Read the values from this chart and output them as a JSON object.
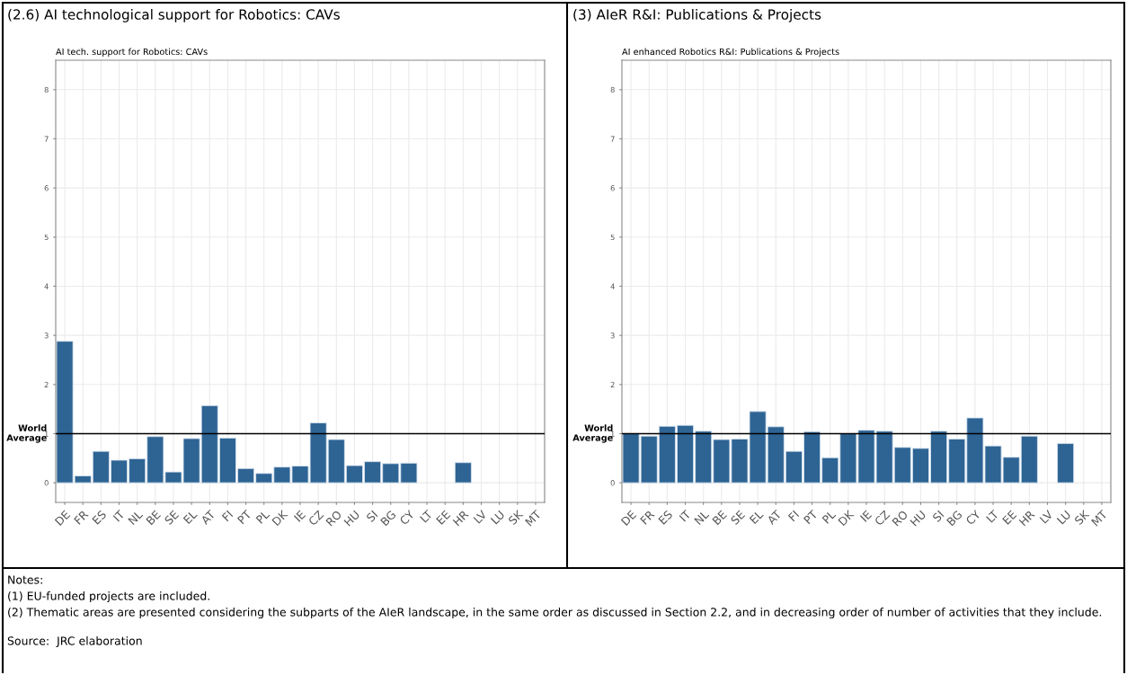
{
  "chart_data": [
    {
      "type": "bar",
      "title": "(2.6) AI technological support for Robotics: CAVs",
      "subtitle": "AI tech. support for Robotics: CAVs",
      "categories": [
        "DE",
        "FR",
        "ES",
        "IT",
        "NL",
        "BE",
        "SE",
        "EL",
        "AT",
        "FI",
        "PT",
        "PL",
        "DK",
        "IE",
        "CZ",
        "RO",
        "HU",
        "SI",
        "BG",
        "CY",
        "LT",
        "EE",
        "HR",
        "LV",
        "LU",
        "SK",
        "MT"
      ],
      "values": [
        2.88,
        0.14,
        0.64,
        0.46,
        0.49,
        0.94,
        0.22,
        0.9,
        1.57,
        0.91,
        0.29,
        0.19,
        0.32,
        0.34,
        1.22,
        0.88,
        0.35,
        0.43,
        0.39,
        0.4,
        null,
        null,
        0.41,
        null,
        null,
        null,
        null
      ],
      "color": "#2e6494",
      "ylim": [
        -0.4,
        8.6
      ],
      "yticks": [
        0,
        1,
        2,
        3,
        4,
        5,
        6,
        7,
        8
      ],
      "grid": true,
      "ref_lines": [
        {
          "axis": "y",
          "value": 1,
          "label": "World\nAverage",
          "color": "#000000"
        }
      ],
      "annotations": [
        "Notes:",
        "(1) EU-funded projects are included.",
        "(2) Thematic areas are presented considering the subparts of the AIeR landscape, in the same order as discussed in Section 2.2, and in decreasing order of number of activities that they include.",
        "Source:  JRC elaboration"
      ]
    },
    {
      "type": "bar",
      "title": "(3) AIeR R&I: Publications & Projects",
      "subtitle": "AI enhanced Robotics R&I: Publications & Projects",
      "categories": [
        "DE",
        "FR",
        "ES",
        "IT",
        "NL",
        "BE",
        "SE",
        "EL",
        "AT",
        "FI",
        "PT",
        "PL",
        "DK",
        "IE",
        "CZ",
        "RO",
        "HU",
        "SI",
        "BG",
        "CY",
        "LT",
        "EE",
        "HR",
        "LV",
        "LU",
        "SK",
        "MT"
      ],
      "values": [
        1.0,
        0.95,
        1.15,
        1.17,
        1.05,
        0.88,
        0.89,
        1.45,
        1.14,
        0.64,
        1.04,
        0.51,
        1.0,
        1.07,
        1.05,
        0.72,
        0.7,
        1.05,
        0.89,
        1.32,
        0.75,
        0.52,
        0.95,
        null,
        0.8,
        null,
        null
      ],
      "color": "#2e6494",
      "ylim": [
        -0.4,
        8.6
      ],
      "yticks": [
        0,
        1,
        2,
        3,
        4,
        5,
        6,
        7,
        8
      ],
      "grid": true,
      "ref_lines": [
        {
          "axis": "y",
          "value": 1,
          "label": "World\nAverage",
          "color": "#000000"
        }
      ]
    }
  ]
}
